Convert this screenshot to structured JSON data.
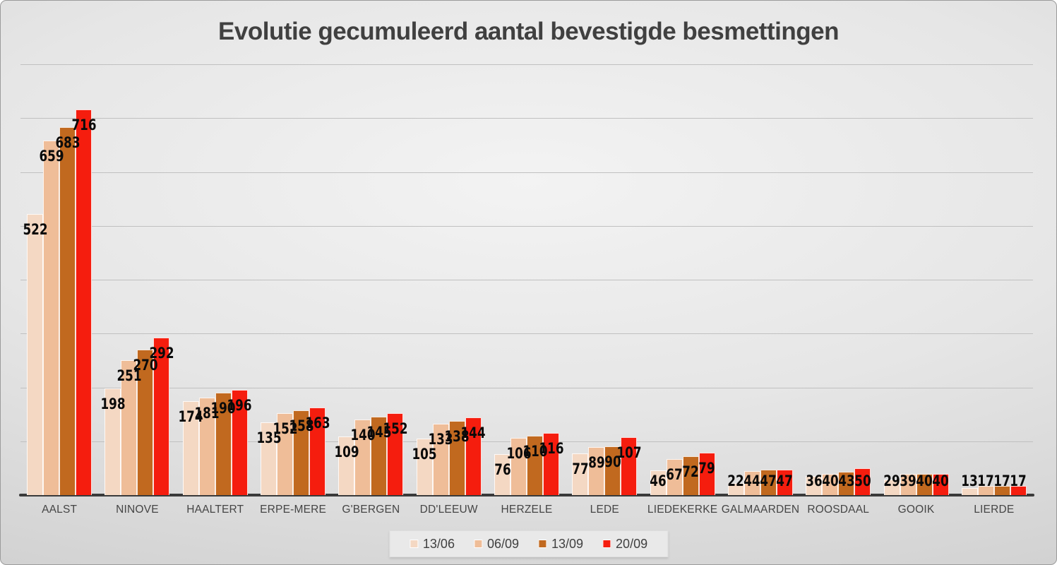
{
  "title": "Evolutie gecumuleerd aantal bevestigde besmettingen",
  "colors": {
    "background_center": "#f3f3f3",
    "background_edge": "#cbcbcb",
    "gridline": "#c0c0c0",
    "axis": "#3a3a3a",
    "title_text": "#404040",
    "value_label_text": "#0a0a0a",
    "category_text": "#454545",
    "legend_background": "#e9e9e9",
    "legend_text": "#404040"
  },
  "chart_data": {
    "type": "bar",
    "title": "Evolutie gecumuleerd aantal bevestigde besmettingen",
    "categories": [
      "AALST",
      "NINOVE",
      "HAALTERT",
      "ERPE-MERE",
      "G'BERGEN",
      "DD'LEEUW",
      "HERZELE",
      "LEDE",
      "LIEDEKERKE",
      "GALMAARDEN",
      "ROOSDAAL",
      "GOOIK",
      "LIERDE"
    ],
    "series": [
      {
        "name": "13/06",
        "color": "#f4d8c3",
        "values": [
          522,
          198,
          174,
          135,
          109,
          105,
          76,
          77,
          46,
          22,
          36,
          29,
          13
        ]
      },
      {
        "name": "06/09",
        "color": "#efbd98",
        "values": [
          659,
          251,
          181,
          152,
          140,
          133,
          106,
          89,
          67,
          44,
          40,
          39,
          17
        ]
      },
      {
        "name": "13/09",
        "color": "#c1691f",
        "values": [
          683,
          270,
          190,
          158,
          145,
          138,
          110,
          90,
          72,
          47,
          43,
          40,
          17
        ]
      },
      {
        "name": "20/09",
        "color": "#f51d0e",
        "values": [
          716,
          292,
          196,
          163,
          152,
          144,
          116,
          107,
          79,
          47,
          50,
          40,
          17
        ]
      }
    ],
    "ylim": [
      0,
      800
    ],
    "gridline_step": 100,
    "y_axis_labels_visible": false,
    "grid": true,
    "data_labels": true,
    "legend_position": "bottom"
  }
}
